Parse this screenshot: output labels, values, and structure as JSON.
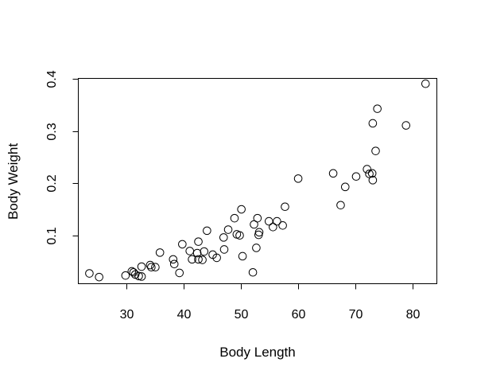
{
  "chart_data": {
    "type": "scatter",
    "title": "",
    "xlabel": "Body Length",
    "ylabel": "Body Weight",
    "xlim": [
      21.6,
      84.1
    ],
    "ylim": [
      0.008,
      0.402
    ],
    "xticks": [
      30,
      40,
      50,
      60,
      70,
      80
    ],
    "yticks": [
      0.1,
      0.2,
      0.3,
      0.4
    ],
    "grid": false,
    "legend": "none",
    "points": [
      {
        "x": 23.6,
        "y": 0.027
      },
      {
        "x": 25.3,
        "y": 0.02
      },
      {
        "x": 29.9,
        "y": 0.023
      },
      {
        "x": 31.0,
        "y": 0.031
      },
      {
        "x": 31.3,
        "y": 0.029
      },
      {
        "x": 31.6,
        "y": 0.025
      },
      {
        "x": 32.2,
        "y": 0.022
      },
      {
        "x": 32.7,
        "y": 0.021
      },
      {
        "x": 32.7,
        "y": 0.04
      },
      {
        "x": 34.2,
        "y": 0.043
      },
      {
        "x": 34.4,
        "y": 0.039
      },
      {
        "x": 35.1,
        "y": 0.039
      },
      {
        "x": 35.9,
        "y": 0.067
      },
      {
        "x": 38.2,
        "y": 0.054
      },
      {
        "x": 38.4,
        "y": 0.045
      },
      {
        "x": 39.3,
        "y": 0.028
      },
      {
        "x": 39.8,
        "y": 0.083
      },
      {
        "x": 41.1,
        "y": 0.07
      },
      {
        "x": 41.5,
        "y": 0.054
      },
      {
        "x": 42.4,
        "y": 0.066
      },
      {
        "x": 42.6,
        "y": 0.088
      },
      {
        "x": 42.6,
        "y": 0.054
      },
      {
        "x": 43.3,
        "y": 0.053
      },
      {
        "x": 43.6,
        "y": 0.069
      },
      {
        "x": 44.1,
        "y": 0.109
      },
      {
        "x": 45.1,
        "y": 0.063
      },
      {
        "x": 45.8,
        "y": 0.057
      },
      {
        "x": 47.0,
        "y": 0.096
      },
      {
        "x": 47.1,
        "y": 0.073
      },
      {
        "x": 47.8,
        "y": 0.111
      },
      {
        "x": 48.9,
        "y": 0.133
      },
      {
        "x": 49.3,
        "y": 0.102
      },
      {
        "x": 49.8,
        "y": 0.1
      },
      {
        "x": 50.1,
        "y": 0.15
      },
      {
        "x": 50.3,
        "y": 0.06
      },
      {
        "x": 52.1,
        "y": 0.029
      },
      {
        "x": 52.3,
        "y": 0.121
      },
      {
        "x": 52.7,
        "y": 0.076
      },
      {
        "x": 52.9,
        "y": 0.133
      },
      {
        "x": 53.1,
        "y": 0.101
      },
      {
        "x": 53.2,
        "y": 0.106
      },
      {
        "x": 54.9,
        "y": 0.127
      },
      {
        "x": 55.6,
        "y": 0.116
      },
      {
        "x": 56.3,
        "y": 0.127
      },
      {
        "x": 57.3,
        "y": 0.119
      },
      {
        "x": 57.7,
        "y": 0.155
      },
      {
        "x": 60.0,
        "y": 0.209
      },
      {
        "x": 66.1,
        "y": 0.219
      },
      {
        "x": 67.4,
        "y": 0.158
      },
      {
        "x": 68.2,
        "y": 0.193
      },
      {
        "x": 70.1,
        "y": 0.213
      },
      {
        "x": 72.0,
        "y": 0.227
      },
      {
        "x": 72.4,
        "y": 0.218
      },
      {
        "x": 72.9,
        "y": 0.219
      },
      {
        "x": 73.0,
        "y": 0.206
      },
      {
        "x": 73.0,
        "y": 0.315
      },
      {
        "x": 73.5,
        "y": 0.262
      },
      {
        "x": 73.8,
        "y": 0.343
      },
      {
        "x": 78.8,
        "y": 0.311
      },
      {
        "x": 82.2,
        "y": 0.391
      }
    ]
  }
}
